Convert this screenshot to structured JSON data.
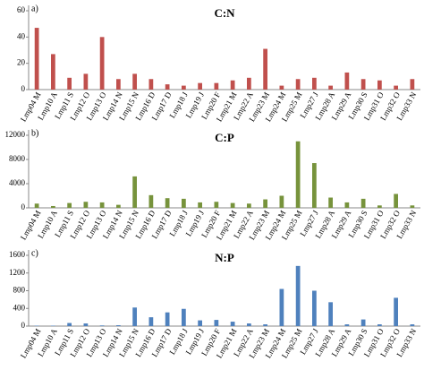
{
  "chart_data": [
    {
      "type": "bar",
      "panel_label": "a)",
      "title": "C:N",
      "color": "#c0504d",
      "categories": [
        "Lmp04 M",
        "Lmp10 A",
        "Lmp11 S",
        "Lmp12 O",
        "Lmp13 O",
        "Lmp14 N",
        "Lmp15 N",
        "Lmp16 D",
        "Lmp17 D",
        "Lmp18 J",
        "Lmp19 J",
        "Lmp20 F",
        "Lmp21 M",
        "Lmp22 A",
        "Lmp23 M",
        "Lmp24 M",
        "Lmp25 M",
        "Lmp27 J",
        "Lmp28 A",
        "Lmp29 A",
        "Lmp30 S",
        "Lmp31 O",
        "Lmp32 O",
        "Lmp33 N"
      ],
      "values": [
        47,
        27,
        9,
        12,
        40,
        8,
        12,
        8,
        4,
        3,
        5,
        5,
        7,
        9,
        31,
        3,
        8,
        9,
        3,
        13,
        8,
        7,
        3,
        8
      ],
      "ylim": [
        0,
        60
      ],
      "yticks": [
        0,
        20,
        40,
        60
      ]
    },
    {
      "type": "bar",
      "panel_label": "b)",
      "title": "C:P",
      "color": "#77933c",
      "categories": [
        "Lmp04 M",
        "Lmp10 A",
        "Lmp11 S",
        "Lmp12 O",
        "Lmp13 O",
        "Lmp14 N",
        "Lmp15 N",
        "Lmp16 D",
        "Lmp17 D",
        "Lmp18 J",
        "Lmp19 J",
        "Lmp20 F",
        "Lmp21 M",
        "Lmp22 A",
        "Lmp23 M",
        "Lmp24 M",
        "Lmp25 M",
        "Lmp27 J",
        "Lmp28 A",
        "Lmp29 A",
        "Lmp30 S",
        "Lmp31 O",
        "Lmp32 O",
        "Lmp33 N"
      ],
      "values": [
        700,
        300,
        800,
        1000,
        900,
        500,
        5200,
        2100,
        1600,
        1500,
        900,
        1000,
        800,
        700,
        1400,
        2000,
        11000,
        7400,
        1700,
        900,
        1500,
        400,
        2300,
        400
      ],
      "ylim": [
        0,
        12000
      ],
      "yticks": [
        0,
        4000,
        8000,
        12000
      ]
    },
    {
      "type": "bar",
      "panel_label": "c)",
      "title": "N:P",
      "color": "#4f81bd",
      "categories": [
        "Lmp04 M",
        "Lmp10 A",
        "Lmp11 S",
        "Lmp12 O",
        "Lmp13 O",
        "Lmp14 N",
        "Lmp15 N",
        "Lmp16 D",
        "Lmp17 D",
        "Lmp18 J",
        "Lmp19 J",
        "Lmp20 F",
        "Lmp21 M",
        "Lmp22 A",
        "Lmp23 M",
        "Lmp24 M",
        "Lmp25 M",
        "Lmp27 J",
        "Lmp28 A",
        "Lmp29 A",
        "Lmp30 S",
        "Lmp31 O",
        "Lmp32 O",
        "Lmp33 N"
      ],
      "values": [
        10,
        10,
        70,
        60,
        15,
        20,
        420,
        200,
        310,
        390,
        130,
        140,
        100,
        60,
        40,
        840,
        1360,
        800,
        540,
        40,
        150,
        40,
        640,
        40
      ],
      "ylim": [
        0,
        1600
      ],
      "yticks": [
        0,
        400,
        800,
        1200,
        1600
      ]
    }
  ]
}
